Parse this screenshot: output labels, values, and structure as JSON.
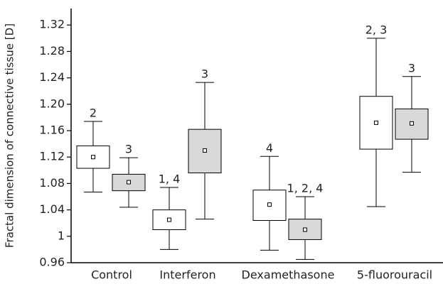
{
  "chart_data": {
    "type": "box",
    "y_label": "Fractal dimension of connective tissue [D]",
    "categories": [
      "Control",
      "Interferon",
      "Dexamethasone",
      "5-fluorouracil"
    ],
    "ylim": [
      0.96,
      1.345
    ],
    "yticks": [
      0.96,
      1,
      1.04,
      1.08,
      1.12,
      1.16,
      {
        "value": 1.2,
        "label": "1.20"
      },
      1.24,
      1.28,
      1.32
    ],
    "series": [
      {
        "color": "#ffffff",
        "whisker_low": [
          1.067,
          0.98,
          0.979,
          1.045
        ],
        "q1": [
          1.103,
          1.01,
          1.024,
          1.132
        ],
        "mean": [
          1.12,
          1.025,
          1.048,
          1.172
        ],
        "q3": [
          1.137,
          1.04,
          1.07,
          1.212
        ],
        "whisker_high": [
          1.174,
          1.074,
          1.121,
          1.3
        ],
        "annotations": [
          "2",
          "1, 4",
          "4",
          "2, 3"
        ]
      },
      {
        "color": "#d9d9d9",
        "whisker_low": [
          1.044,
          1.026,
          0.965,
          1.097
        ],
        "q1": [
          1.069,
          1.096,
          0.995,
          1.147
        ],
        "mean": [
          1.082,
          1.13,
          1.01,
          1.171
        ],
        "q3": [
          1.094,
          1.162,
          1.026,
          1.193
        ],
        "whisker_high": [
          1.119,
          1.233,
          1.06,
          1.242
        ],
        "annotations": [
          "3",
          "3",
          "1, 2, 4",
          "3"
        ]
      }
    ]
  }
}
